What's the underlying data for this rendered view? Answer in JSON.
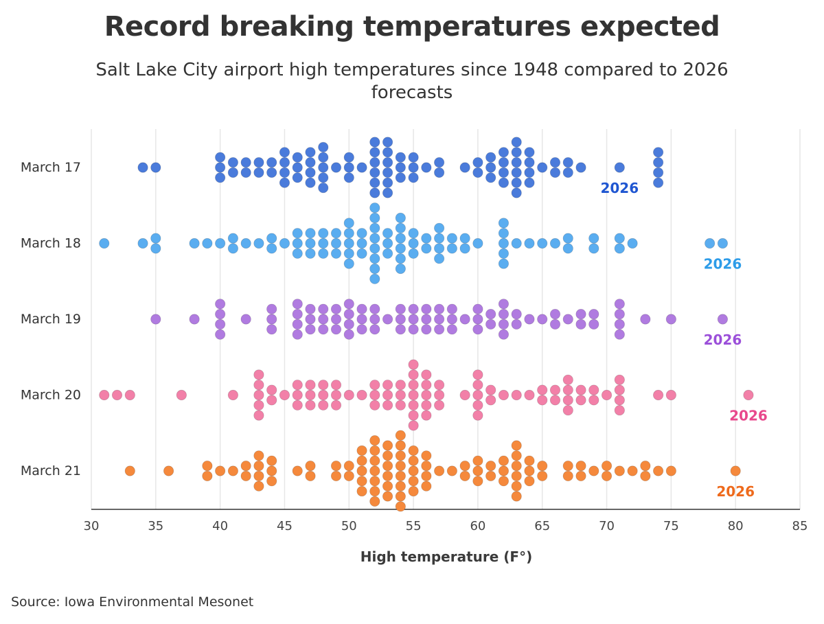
{
  "title": "Record breaking temperatures expected",
  "subtitle": "Salt Lake City airport high temperatures since 1948 compared to 2026 forecasts",
  "source": "Source: Iowa Environmental Mesonet",
  "chart_data": {
    "type": "scatter",
    "subtype": "beeswarm",
    "xlabel": "High temperature (F°)",
    "xlim": [
      30,
      85
    ],
    "xticks": [
      30,
      35,
      40,
      45,
      50,
      55,
      60,
      65,
      70,
      75,
      80,
      85
    ],
    "grid": "vertical",
    "legend": "none",
    "categories": [
      "March 17",
      "March 18",
      "March 19",
      "March 20",
      "March 21"
    ],
    "series": [
      {
        "category": "March 17",
        "color": "#4A7BDB",
        "label_color": "#1F56D1",
        "values": [
          34,
          35,
          40,
          40,
          40,
          41,
          41,
          42,
          42,
          43,
          43,
          44,
          44,
          45,
          45,
          45,
          45,
          46,
          46,
          46,
          47,
          47,
          47,
          47,
          48,
          48,
          48,
          48,
          48,
          49,
          50,
          50,
          50,
          51,
          52,
          52,
          52,
          52,
          52,
          52,
          53,
          53,
          53,
          53,
          53,
          53,
          54,
          54,
          54,
          55,
          55,
          55,
          56,
          57,
          57,
          59,
          60,
          60,
          61,
          61,
          61,
          62,
          62,
          62,
          62,
          63,
          63,
          63,
          63,
          63,
          63,
          64,
          64,
          64,
          64,
          65,
          66,
          66,
          67,
          67,
          68,
          71,
          74,
          74,
          74,
          74
        ],
        "highlight": {
          "value": 71,
          "label": "2026"
        }
      },
      {
        "category": "March 18",
        "color": "#5AADF0",
        "label_color": "#2D9CE8",
        "values": [
          31,
          34,
          35,
          35,
          38,
          39,
          40,
          41,
          41,
          42,
          43,
          44,
          44,
          45,
          46,
          46,
          46,
          47,
          47,
          47,
          48,
          48,
          48,
          49,
          49,
          49,
          50,
          50,
          50,
          50,
          50,
          51,
          51,
          51,
          52,
          52,
          52,
          52,
          52,
          52,
          52,
          52,
          53,
          53,
          53,
          54,
          54,
          54,
          54,
          54,
          54,
          55,
          55,
          55,
          56,
          56,
          57,
          57,
          57,
          57,
          58,
          58,
          59,
          59,
          60,
          62,
          62,
          62,
          62,
          62,
          63,
          64,
          65,
          66,
          67,
          67,
          69,
          69,
          71,
          71,
          72,
          78,
          79
        ],
        "highlight": {
          "value": 79,
          "label": "2026"
        }
      },
      {
        "category": "March 19",
        "color": "#B07BE0",
        "label_color": "#9B4FD9",
        "values": [
          35,
          38,
          40,
          40,
          40,
          40,
          42,
          44,
          44,
          44,
          46,
          46,
          46,
          46,
          47,
          47,
          47,
          48,
          48,
          48,
          49,
          49,
          49,
          50,
          50,
          50,
          50,
          51,
          51,
          51,
          52,
          52,
          52,
          53,
          54,
          54,
          54,
          55,
          55,
          55,
          56,
          56,
          56,
          57,
          57,
          57,
          58,
          58,
          58,
          59,
          60,
          60,
          60,
          61,
          61,
          62,
          62,
          62,
          62,
          63,
          63,
          64,
          65,
          66,
          66,
          67,
          68,
          68,
          69,
          69,
          71,
          71,
          71,
          71,
          73,
          75,
          79
        ],
        "highlight": {
          "value": 79,
          "label": "2026"
        }
      },
      {
        "category": "March 20",
        "color": "#F280A8",
        "label_color": "#E8488C",
        "values": [
          31,
          32,
          33,
          37,
          41,
          43,
          43,
          43,
          43,
          43,
          44,
          44,
          45,
          46,
          46,
          46,
          47,
          47,
          47,
          48,
          48,
          48,
          49,
          49,
          49,
          50,
          51,
          52,
          52,
          52,
          53,
          53,
          53,
          54,
          54,
          54,
          55,
          55,
          55,
          55,
          55,
          55,
          55,
          56,
          56,
          56,
          56,
          56,
          57,
          57,
          57,
          59,
          60,
          60,
          60,
          60,
          60,
          61,
          61,
          62,
          63,
          64,
          65,
          65,
          66,
          66,
          67,
          67,
          67,
          67,
          68,
          68,
          69,
          69,
          70,
          71,
          71,
          71,
          71,
          74,
          75,
          81
        ],
        "highlight": {
          "value": 81,
          "label": "2026"
        }
      },
      {
        "category": "March 21",
        "color": "#F5893C",
        "label_color": "#EE6A1C",
        "values": [
          33,
          36,
          39,
          39,
          40,
          41,
          42,
          42,
          43,
          43,
          43,
          43,
          44,
          44,
          44,
          46,
          47,
          47,
          49,
          49,
          50,
          50,
          51,
          51,
          51,
          51,
          51,
          52,
          52,
          52,
          52,
          52,
          52,
          52,
          53,
          53,
          53,
          53,
          53,
          53,
          54,
          54,
          54,
          54,
          54,
          54,
          54,
          54,
          55,
          55,
          55,
          55,
          55,
          56,
          56,
          56,
          56,
          57,
          58,
          59,
          59,
          60,
          60,
          60,
          61,
          61,
          62,
          62,
          62,
          63,
          63,
          63,
          63,
          63,
          63,
          64,
          64,
          64,
          65,
          65,
          67,
          67,
          68,
          68,
          69,
          70,
          70,
          71,
          72,
          73,
          73,
          74,
          75,
          80
        ],
        "highlight": {
          "value": 80,
          "label": "2026"
        }
      }
    ]
  }
}
